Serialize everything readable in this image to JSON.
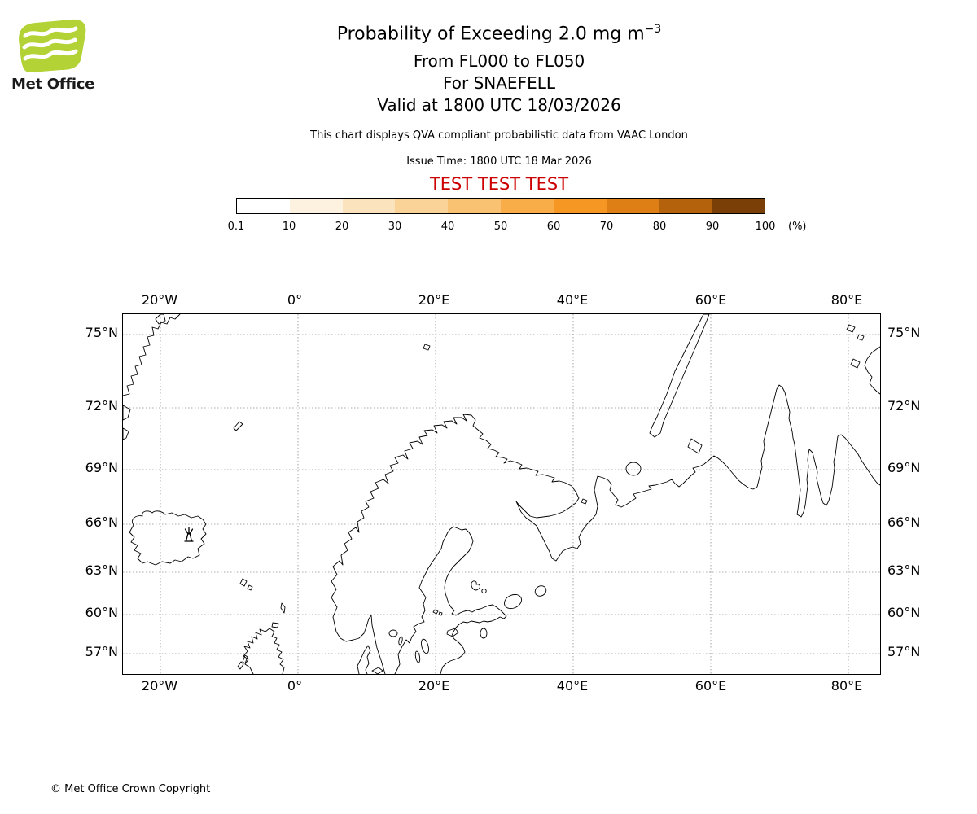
{
  "header": {
    "logo_text": "Met Office",
    "logo_color": "#b2d235",
    "title_main": "Probability of Exceeding 2.0 mg m",
    "title_superscript": "−3",
    "subtitle_lines": [
      "From FL000 to FL050",
      "For SNAEFELL",
      "Valid at 1800 UTC 18/03/2026"
    ],
    "description": "This chart displays QVA compliant probabilistic data from VAAC London",
    "issue_time": "Issue Time: 1800 UTC 18 Mar 2026",
    "test_banner": "TEST TEST TEST",
    "test_banner_color": "#cc0000"
  },
  "colorbar": {
    "unit": "(%)",
    "tick_labels": [
      "0.1",
      "10",
      "20",
      "30",
      "40",
      "50",
      "60",
      "70",
      "80",
      "90",
      "100"
    ],
    "segment_colors": [
      "#ffffff",
      "#fdf2df",
      "#fbe3bd",
      "#fad398",
      "#f9c272",
      "#f8ad49",
      "#f59722",
      "#dd7f14",
      "#b5620d",
      "#7a3e07"
    ]
  },
  "map": {
    "x_tick_labels": [
      "20°W",
      "0°",
      "20°E",
      "40°E",
      "60°E",
      "80°E"
    ],
    "y_tick_labels": [
      "75°N",
      "72°N",
      "69°N",
      "66°N",
      "63°N",
      "60°N",
      "57°N"
    ],
    "volcano_name": "SNAEFELL"
  },
  "footer": {
    "copyright": "© Met Office Crown Copyright"
  },
  "chart_data": {
    "type": "map",
    "title": "Probability of Exceeding 2.0 mg m−3",
    "subtitle": [
      "From FL000 to FL050",
      "For SNAEFELL",
      "Valid at 1800 UTC 18/03/2026"
    ],
    "x_tick_labels": [
      "20°W",
      "0°",
      "20°E",
      "40°E",
      "60°E",
      "80°E"
    ],
    "y_tick_labels": [
      "75°N",
      "72°N",
      "69°N",
      "66°N",
      "63°N",
      "60°N",
      "57°N"
    ],
    "colorbar": {
      "unit": "%",
      "ticks": [
        0.1,
        10,
        20,
        30,
        40,
        50,
        60,
        70,
        80,
        90,
        100
      ]
    },
    "volcano_marker": "SNAEFELL",
    "exceedance_regions": []
  }
}
